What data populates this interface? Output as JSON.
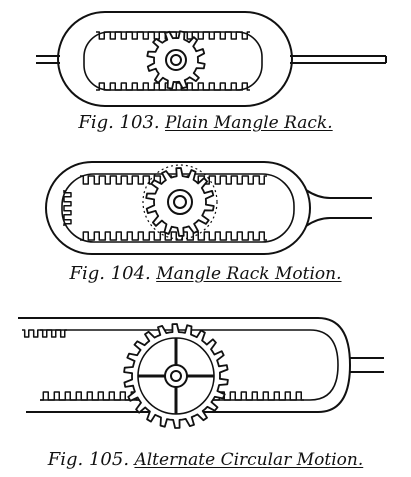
{
  "figures": [
    {
      "id": "fig-103",
      "number": "Fig. 103.",
      "title": "Plain Mangle Rack."
    },
    {
      "id": "fig-104",
      "number": "Fig. 104.",
      "title": "Mangle Rack Motion."
    },
    {
      "id": "fig-105",
      "number": "Fig. 105.",
      "title": "Alternate Circular Motion."
    }
  ],
  "colors": {
    "ink": "#111111",
    "paper": "#ffffff"
  }
}
